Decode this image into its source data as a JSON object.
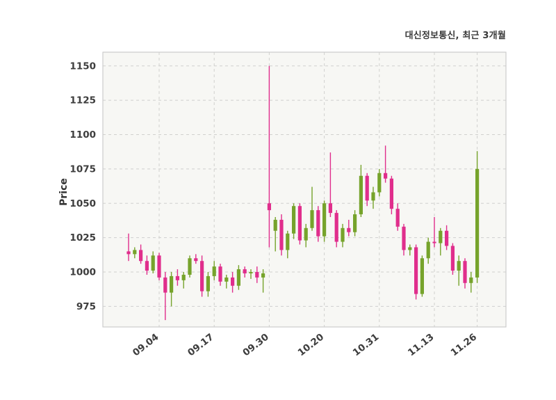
{
  "title": "대신정보통신, 최근 3개월",
  "chart_data": {
    "type": "candlestick",
    "title": "대신정보통신, 최근 3개월",
    "xlabel": "",
    "ylabel": "Price",
    "ylim": [
      960,
      1160
    ],
    "yticks": [
      975,
      1000,
      1025,
      1050,
      1075,
      1100,
      1125,
      1150
    ],
    "grid": "dashed",
    "legend": "none",
    "up_color": "#76a32b",
    "down_color": "#e02e8c",
    "plot_bg": "#f7f7f4",
    "grid_color": "#d0d0ce",
    "border_color": "#cccccc",
    "xtick_labels": [
      "09.04",
      "09.17",
      "09.30",
      "10.20",
      "10.31",
      "11.13",
      "11.26"
    ],
    "xtick_indices": [
      5,
      14,
      23,
      32,
      41,
      50,
      57
    ],
    "ohlc_format": [
      "open",
      "high",
      "low",
      "close"
    ],
    "candles": [
      [
        1015,
        1028,
        1008,
        1013
      ],
      [
        1013,
        1018,
        1010,
        1016
      ],
      [
        1016,
        1020,
        1006,
        1008
      ],
      [
        1008,
        1012,
        998,
        1001
      ],
      [
        1001,
        1015,
        999,
        1012
      ],
      [
        1012,
        1014,
        994,
        996
      ],
      [
        996,
        1000,
        965,
        985
      ],
      [
        985,
        1000,
        975,
        997
      ],
      [
        997,
        1002,
        990,
        994
      ],
      [
        994,
        1000,
        988,
        998
      ],
      [
        998,
        1012,
        996,
        1010
      ],
      [
        1010,
        1013,
        1006,
        1008
      ],
      [
        1008,
        1012,
        982,
        986
      ],
      [
        986,
        1000,
        982,
        997
      ],
      [
        997,
        1008,
        994,
        1004
      ],
      [
        1004,
        1006,
        990,
        993
      ],
      [
        993,
        998,
        988,
        996
      ],
      [
        996,
        1000,
        985,
        990
      ],
      [
        990,
        1005,
        987,
        1002
      ],
      [
        1002,
        1004,
        996,
        999
      ],
      [
        999,
        1002,
        995,
        1000
      ],
      [
        1000,
        1004,
        992,
        996
      ],
      [
        996,
        1002,
        985,
        999
      ],
      [
        1050,
        1150,
        1018,
        1045
      ],
      [
        1030,
        1040,
        1015,
        1038
      ],
      [
        1038,
        1042,
        1012,
        1016
      ],
      [
        1016,
        1030,
        1010,
        1028
      ],
      [
        1028,
        1050,
        1024,
        1048
      ],
      [
        1048,
        1050,
        1020,
        1023
      ],
      [
        1023,
        1035,
        1018,
        1032
      ],
      [
        1032,
        1062,
        1030,
        1045
      ],
      [
        1045,
        1048,
        1022,
        1026
      ],
      [
        1026,
        1052,
        1022,
        1050
      ],
      [
        1050,
        1087,
        1040,
        1043
      ],
      [
        1043,
        1045,
        1018,
        1022
      ],
      [
        1022,
        1035,
        1018,
        1032
      ],
      [
        1032,
        1038,
        1026,
        1029
      ],
      [
        1029,
        1045,
        1026,
        1042
      ],
      [
        1042,
        1078,
        1040,
        1070
      ],
      [
        1070,
        1072,
        1048,
        1052
      ],
      [
        1052,
        1062,
        1046,
        1058
      ],
      [
        1058,
        1075,
        1055,
        1072
      ],
      [
        1072,
        1092,
        1065,
        1068
      ],
      [
        1068,
        1070,
        1042,
        1046
      ],
      [
        1046,
        1050,
        1030,
        1033
      ],
      [
        1033,
        1035,
        1012,
        1016
      ],
      [
        1016,
        1020,
        1012,
        1018
      ],
      [
        1018,
        1020,
        980,
        984
      ],
      [
        984,
        1012,
        982,
        1010
      ],
      [
        1010,
        1025,
        1006,
        1022
      ],
      [
        1022,
        1040,
        1018,
        1021
      ],
      [
        1021,
        1032,
        1012,
        1030
      ],
      [
        1030,
        1034,
        1016,
        1019
      ],
      [
        1019,
        1021,
        998,
        1001
      ],
      [
        1001,
        1012,
        990,
        1008
      ],
      [
        1008,
        1010,
        988,
        992
      ],
      [
        992,
        1000,
        985,
        996
      ],
      [
        996,
        1088,
        992,
        1075
      ]
    ]
  }
}
